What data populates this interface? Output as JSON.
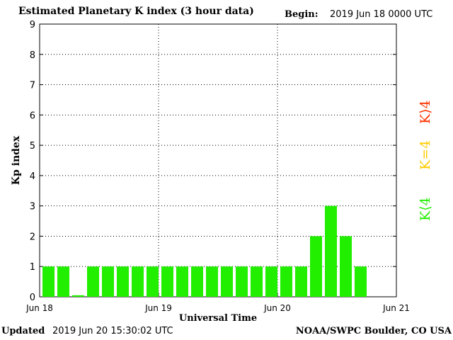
{
  "header": {
    "title": "Estimated Planetary K index (3 hour data)",
    "begin_label": "Begin:",
    "begin_value": "2019 Jun 18 0000 UTC"
  },
  "footer": {
    "updated_label": "Updated",
    "updated_value": "2019 Jun 20 15:30:02 UTC",
    "org": "NOAA/SWPC Boulder, CO USA"
  },
  "legend": [
    {
      "label": "K⟩4",
      "color": "#ff3300"
    },
    {
      "label": "K=4",
      "color": "#ffcc00"
    },
    {
      "label": "K⟨4",
      "color": "#22ee00"
    }
  ],
  "chart_data": {
    "type": "bar",
    "title": "Estimated Planetary K index (3 hour data)",
    "xlabel": "Universal Time",
    "ylabel": "Kp index",
    "ylim": [
      0,
      9
    ],
    "yticks": [
      "0",
      "1",
      "2",
      "3",
      "4",
      "5",
      "6",
      "7",
      "8",
      "9"
    ],
    "x_tick_labels": [
      "Jun 18",
      "Jun 19",
      "Jun 20",
      "Jun 21"
    ],
    "grid": true,
    "bar_color": "#22ee00",
    "values": [
      1,
      1,
      0.05,
      1,
      1,
      1,
      1,
      1,
      1,
      1,
      1,
      1,
      1,
      1,
      1,
      1,
      1,
      1,
      2,
      3,
      2,
      1
    ]
  }
}
